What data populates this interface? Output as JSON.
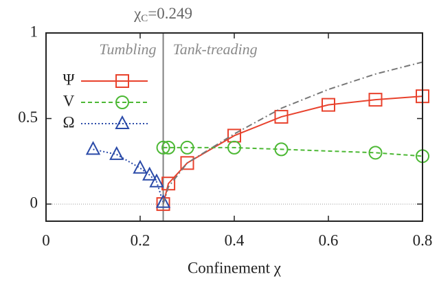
{
  "chart_data": {
    "type": "line",
    "xlabel": "Confinement χ",
    "xlim": [
      0,
      0.8
    ],
    "xticks": [
      0,
      0.2,
      0.4,
      0.6,
      0.8
    ],
    "ylim": [
      -0.1,
      1
    ],
    "yticks": [
      0,
      0.5,
      1
    ],
    "critical_line": {
      "value": 0.249,
      "color": "#808080",
      "label_base": "χ",
      "label_sub": "C",
      "label_tail": "=0.249"
    },
    "zero_line": {
      "value": 0,
      "color": "#999999"
    },
    "region_labels": [
      "Tumbling",
      "Tank-treading"
    ],
    "legend": "upper left",
    "series": [
      {
        "name": "Ψ",
        "color": "#e8412c",
        "dash": "solid",
        "marker": "square",
        "x": [
          0.249,
          0.26,
          0.3,
          0.4,
          0.5,
          0.6,
          0.7,
          0.8
        ],
        "values": [
          0.0,
          0.12,
          0.24,
          0.4,
          0.51,
          0.58,
          0.61,
          0.63
        ]
      },
      {
        "name": "V",
        "color": "#4cb834",
        "dash": "dashed",
        "marker": "circle",
        "x": [
          0.249,
          0.26,
          0.3,
          0.4,
          0.5,
          0.7,
          0.8
        ],
        "values": [
          0.33,
          0.33,
          0.33,
          0.33,
          0.32,
          0.3,
          0.28
        ]
      },
      {
        "name": "Ω",
        "color": "#2a4aa8",
        "dash": "dotted",
        "marker": "triangle",
        "x": [
          0.1,
          0.15,
          0.2,
          0.22,
          0.235,
          0.249
        ],
        "values": [
          0.32,
          0.29,
          0.21,
          0.17,
          0.13,
          0.01
        ]
      },
      {
        "color": "#777777",
        "dash": "dashdot",
        "marker": "none",
        "x": [
          0.249,
          0.26,
          0.3,
          0.4,
          0.5,
          0.6,
          0.7,
          0.8
        ],
        "values": [
          0.0,
          0.1,
          0.24,
          0.41,
          0.56,
          0.67,
          0.76,
          0.83
        ]
      }
    ]
  }
}
